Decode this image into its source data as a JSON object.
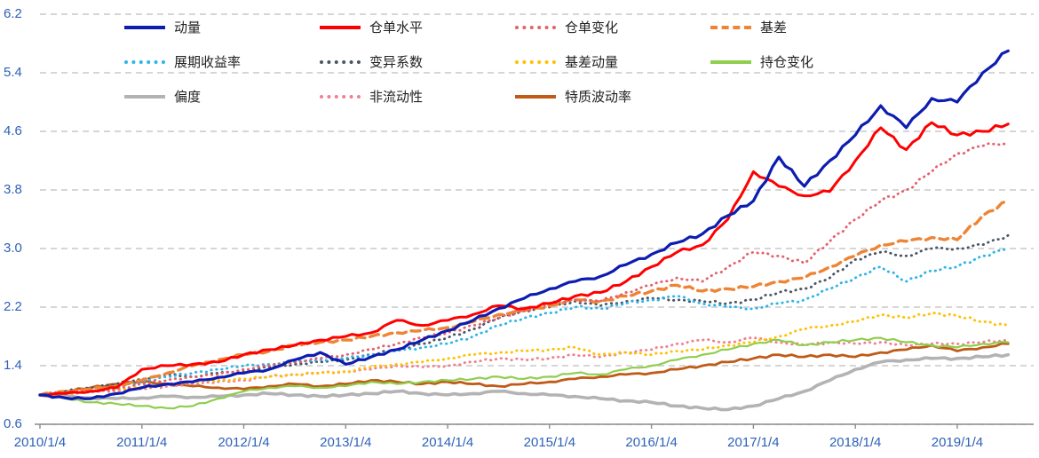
{
  "page": {
    "background": "#ffffff"
  },
  "axes": {
    "tick_color": "#2e61b8",
    "grid_color": "#c9c9c9",
    "axis_line_color": "#8c8c8c",
    "y_tick_labels": [
      "6.2",
      "5.4",
      "4.6",
      "3.8",
      "3.0",
      "2.2",
      "1.4",
      "0.6"
    ],
    "x_tick_labels": [
      "2010/1/4",
      "2011/1/4",
      "2012/1/4",
      "2013/1/4",
      "2014/1/4",
      "2015/1/4",
      "2016/1/4",
      "2017/1/4",
      "2018/1/4",
      "2019/1/4"
    ]
  },
  "chart_data": {
    "type": "line",
    "title": "",
    "xlabel": "",
    "ylabel": "",
    "ylim": [
      0.6,
      6.2
    ],
    "y_ticks": [
      0.6,
      1.4,
      2.2,
      3.0,
      3.8,
      4.6,
      5.4,
      6.2
    ],
    "x_years": [
      2010,
      2011,
      2012,
      2013,
      2014,
      2015,
      2016,
      2017,
      2018,
      2019
    ],
    "x_tick_labels": [
      "2010/1/4",
      "2011/1/4",
      "2012/1/4",
      "2013/1/4",
      "2014/1/4",
      "2015/1/4",
      "2016/1/4",
      "2017/1/4",
      "2018/1/4",
      "2019/1/4"
    ],
    "grid": true,
    "legend_position": "top-inside",
    "x": [
      2010,
      2010.25,
      2010.5,
      2010.75,
      2011,
      2011.25,
      2011.5,
      2011.75,
      2012,
      2012.25,
      2012.5,
      2012.75,
      2013,
      2013.25,
      2013.5,
      2013.75,
      2014,
      2014.25,
      2014.5,
      2014.75,
      2015,
      2015.25,
      2015.5,
      2015.75,
      2016,
      2016.25,
      2016.5,
      2016.75,
      2017,
      2017.25,
      2017.5,
      2017.75,
      2018,
      2018.25,
      2018.5,
      2018.75,
      2019,
      2019.25,
      2019.5
    ],
    "series": [
      {
        "id": "momentum",
        "name": "动量",
        "color": "#0d1db0",
        "style": "solid",
        "width": 3.2,
        "values": [
          1.0,
          0.96,
          0.95,
          1.02,
          1.1,
          1.15,
          1.18,
          1.24,
          1.3,
          1.35,
          1.48,
          1.58,
          1.42,
          1.52,
          1.62,
          1.75,
          1.88,
          2.02,
          2.18,
          2.32,
          2.45,
          2.55,
          2.62,
          2.78,
          2.92,
          3.08,
          3.2,
          3.45,
          3.65,
          4.25,
          3.85,
          4.2,
          4.55,
          4.95,
          4.65,
          5.05,
          5.0,
          5.4,
          5.7
        ]
      },
      {
        "id": "warehouse-receipt-level",
        "name": "仓单水平",
        "color": "#fe0000",
        "style": "solid",
        "width": 3.0,
        "values": [
          1.0,
          1.02,
          1.05,
          1.1,
          1.35,
          1.4,
          1.42,
          1.45,
          1.55,
          1.62,
          1.68,
          1.75,
          1.8,
          1.85,
          2.02,
          1.95,
          2.02,
          2.1,
          2.22,
          2.18,
          2.25,
          2.35,
          2.4,
          2.55,
          2.75,
          2.95,
          3.05,
          3.4,
          4.05,
          3.85,
          3.72,
          3.78,
          4.2,
          4.65,
          4.35,
          4.72,
          4.55,
          4.6,
          4.7
        ]
      },
      {
        "id": "warehouse-receipt-change",
        "name": "仓单变化",
        "color": "#e4606d",
        "style": "dotted",
        "width": 2.8,
        "values": [
          1.0,
          1.03,
          1.05,
          1.08,
          1.15,
          1.2,
          1.25,
          1.28,
          1.35,
          1.4,
          1.45,
          1.5,
          1.55,
          1.62,
          1.7,
          1.78,
          1.85,
          1.95,
          2.05,
          2.15,
          2.25,
          2.3,
          2.28,
          2.4,
          2.5,
          2.6,
          2.55,
          2.75,
          2.95,
          2.9,
          2.8,
          3.1,
          3.4,
          3.65,
          3.8,
          4.05,
          4.3,
          4.4,
          4.45
        ]
      },
      {
        "id": "basis",
        "name": "基差",
        "color": "#ee8435",
        "style": "dashed",
        "width": 3.4,
        "values": [
          1.0,
          1.05,
          1.08,
          1.12,
          1.2,
          1.3,
          1.4,
          1.48,
          1.55,
          1.6,
          1.68,
          1.72,
          1.75,
          1.8,
          1.85,
          1.88,
          1.92,
          2.0,
          2.1,
          2.15,
          2.22,
          2.3,
          2.28,
          2.35,
          2.42,
          2.5,
          2.42,
          2.45,
          2.48,
          2.55,
          2.6,
          2.75,
          2.9,
          3.05,
          3.1,
          3.15,
          3.12,
          3.45,
          3.65
        ]
      },
      {
        "id": "roll-yield",
        "name": "展期收益率",
        "color": "#2fb4e9",
        "style": "dotted",
        "width": 2.8,
        "values": [
          1.0,
          1.02,
          1.05,
          1.1,
          1.18,
          1.25,
          1.3,
          1.35,
          1.4,
          1.42,
          1.45,
          1.48,
          1.5,
          1.55,
          1.6,
          1.65,
          1.7,
          1.8,
          1.95,
          2.05,
          2.12,
          2.2,
          2.18,
          2.25,
          2.3,
          2.35,
          2.25,
          2.2,
          2.18,
          2.25,
          2.3,
          2.45,
          2.6,
          2.75,
          2.55,
          2.7,
          2.75,
          2.9,
          3.0
        ]
      },
      {
        "id": "coefficient-of-variation",
        "name": "变异系数",
        "color": "#4a5664",
        "style": "dotted",
        "width": 2.8,
        "values": [
          1.0,
          1.05,
          1.1,
          1.15,
          1.22,
          1.28,
          1.25,
          1.3,
          1.32,
          1.38,
          1.42,
          1.45,
          1.48,
          1.55,
          1.62,
          1.7,
          1.78,
          1.9,
          2.05,
          2.15,
          2.2,
          2.28,
          2.22,
          2.28,
          2.32,
          2.3,
          2.28,
          2.25,
          2.3,
          2.4,
          2.45,
          2.6,
          2.85,
          2.95,
          2.9,
          3.0,
          3.0,
          3.05,
          3.18
        ]
      },
      {
        "id": "basis-momentum",
        "name": "基差动量",
        "color": "#ffc000",
        "style": "dotted",
        "width": 2.8,
        "values": [
          1.0,
          1.02,
          1.05,
          1.08,
          1.1,
          1.15,
          1.18,
          1.2,
          1.22,
          1.25,
          1.28,
          1.3,
          1.32,
          1.38,
          1.42,
          1.45,
          1.5,
          1.55,
          1.58,
          1.6,
          1.62,
          1.65,
          1.55,
          1.58,
          1.55,
          1.6,
          1.62,
          1.68,
          1.72,
          1.8,
          1.9,
          1.95,
          2.0,
          2.1,
          2.05,
          2.12,
          2.08,
          2.0,
          1.95
        ]
      },
      {
        "id": "position-change",
        "name": "持仓变化",
        "color": "#8fce4e",
        "style": "solid",
        "width": 2.2,
        "values": [
          1.0,
          0.95,
          0.9,
          0.88,
          0.85,
          0.82,
          0.85,
          0.95,
          1.05,
          1.1,
          1.12,
          1.1,
          1.12,
          1.18,
          1.15,
          1.18,
          1.2,
          1.22,
          1.25,
          1.22,
          1.25,
          1.3,
          1.28,
          1.35,
          1.4,
          1.48,
          1.55,
          1.62,
          1.7,
          1.75,
          1.68,
          1.72,
          1.75,
          1.78,
          1.72,
          1.68,
          1.65,
          1.7,
          1.72
        ]
      },
      {
        "id": "skewness",
        "name": "偏度",
        "color": "#b3b3b3",
        "style": "solid",
        "width": 3.6,
        "values": [
          1.0,
          0.98,
          0.96,
          0.95,
          0.96,
          0.98,
          0.97,
          0.98,
          1.0,
          1.02,
          1.0,
          0.98,
          1.0,
          1.02,
          1.05,
          1.02,
          1.0,
          1.02,
          1.05,
          1.02,
          1.0,
          0.98,
          0.95,
          0.92,
          0.9,
          0.85,
          0.82,
          0.8,
          0.85,
          0.95,
          1.05,
          1.2,
          1.35,
          1.45,
          1.48,
          1.5,
          1.5,
          1.52,
          1.55
        ]
      },
      {
        "id": "illiquidity",
        "name": "非流动性",
        "color": "#f0808f",
        "style": "dotted",
        "width": 2.8,
        "values": [
          1.0,
          1.02,
          1.04,
          1.06,
          1.08,
          1.12,
          1.15,
          1.18,
          1.2,
          1.25,
          1.28,
          1.3,
          1.32,
          1.35,
          1.4,
          1.38,
          1.4,
          1.45,
          1.5,
          1.48,
          1.5,
          1.55,
          1.52,
          1.58,
          1.62,
          1.7,
          1.75,
          1.72,
          1.78,
          1.72,
          1.68,
          1.72,
          1.7,
          1.72,
          1.68,
          1.7,
          1.7,
          1.72,
          1.75
        ]
      },
      {
        "id": "idiosyncratic-volatility",
        "name": "特质波动率",
        "color": "#bf5b16",
        "style": "solid",
        "width": 2.8,
        "values": [
          1.0,
          1.05,
          1.1,
          1.15,
          1.18,
          1.15,
          1.12,
          1.1,
          1.08,
          1.12,
          1.15,
          1.12,
          1.15,
          1.2,
          1.18,
          1.15,
          1.18,
          1.15,
          1.12,
          1.15,
          1.18,
          1.22,
          1.25,
          1.28,
          1.3,
          1.35,
          1.4,
          1.45,
          1.5,
          1.55,
          1.52,
          1.55,
          1.52,
          1.58,
          1.62,
          1.68,
          1.6,
          1.65,
          1.7
        ]
      }
    ]
  }
}
